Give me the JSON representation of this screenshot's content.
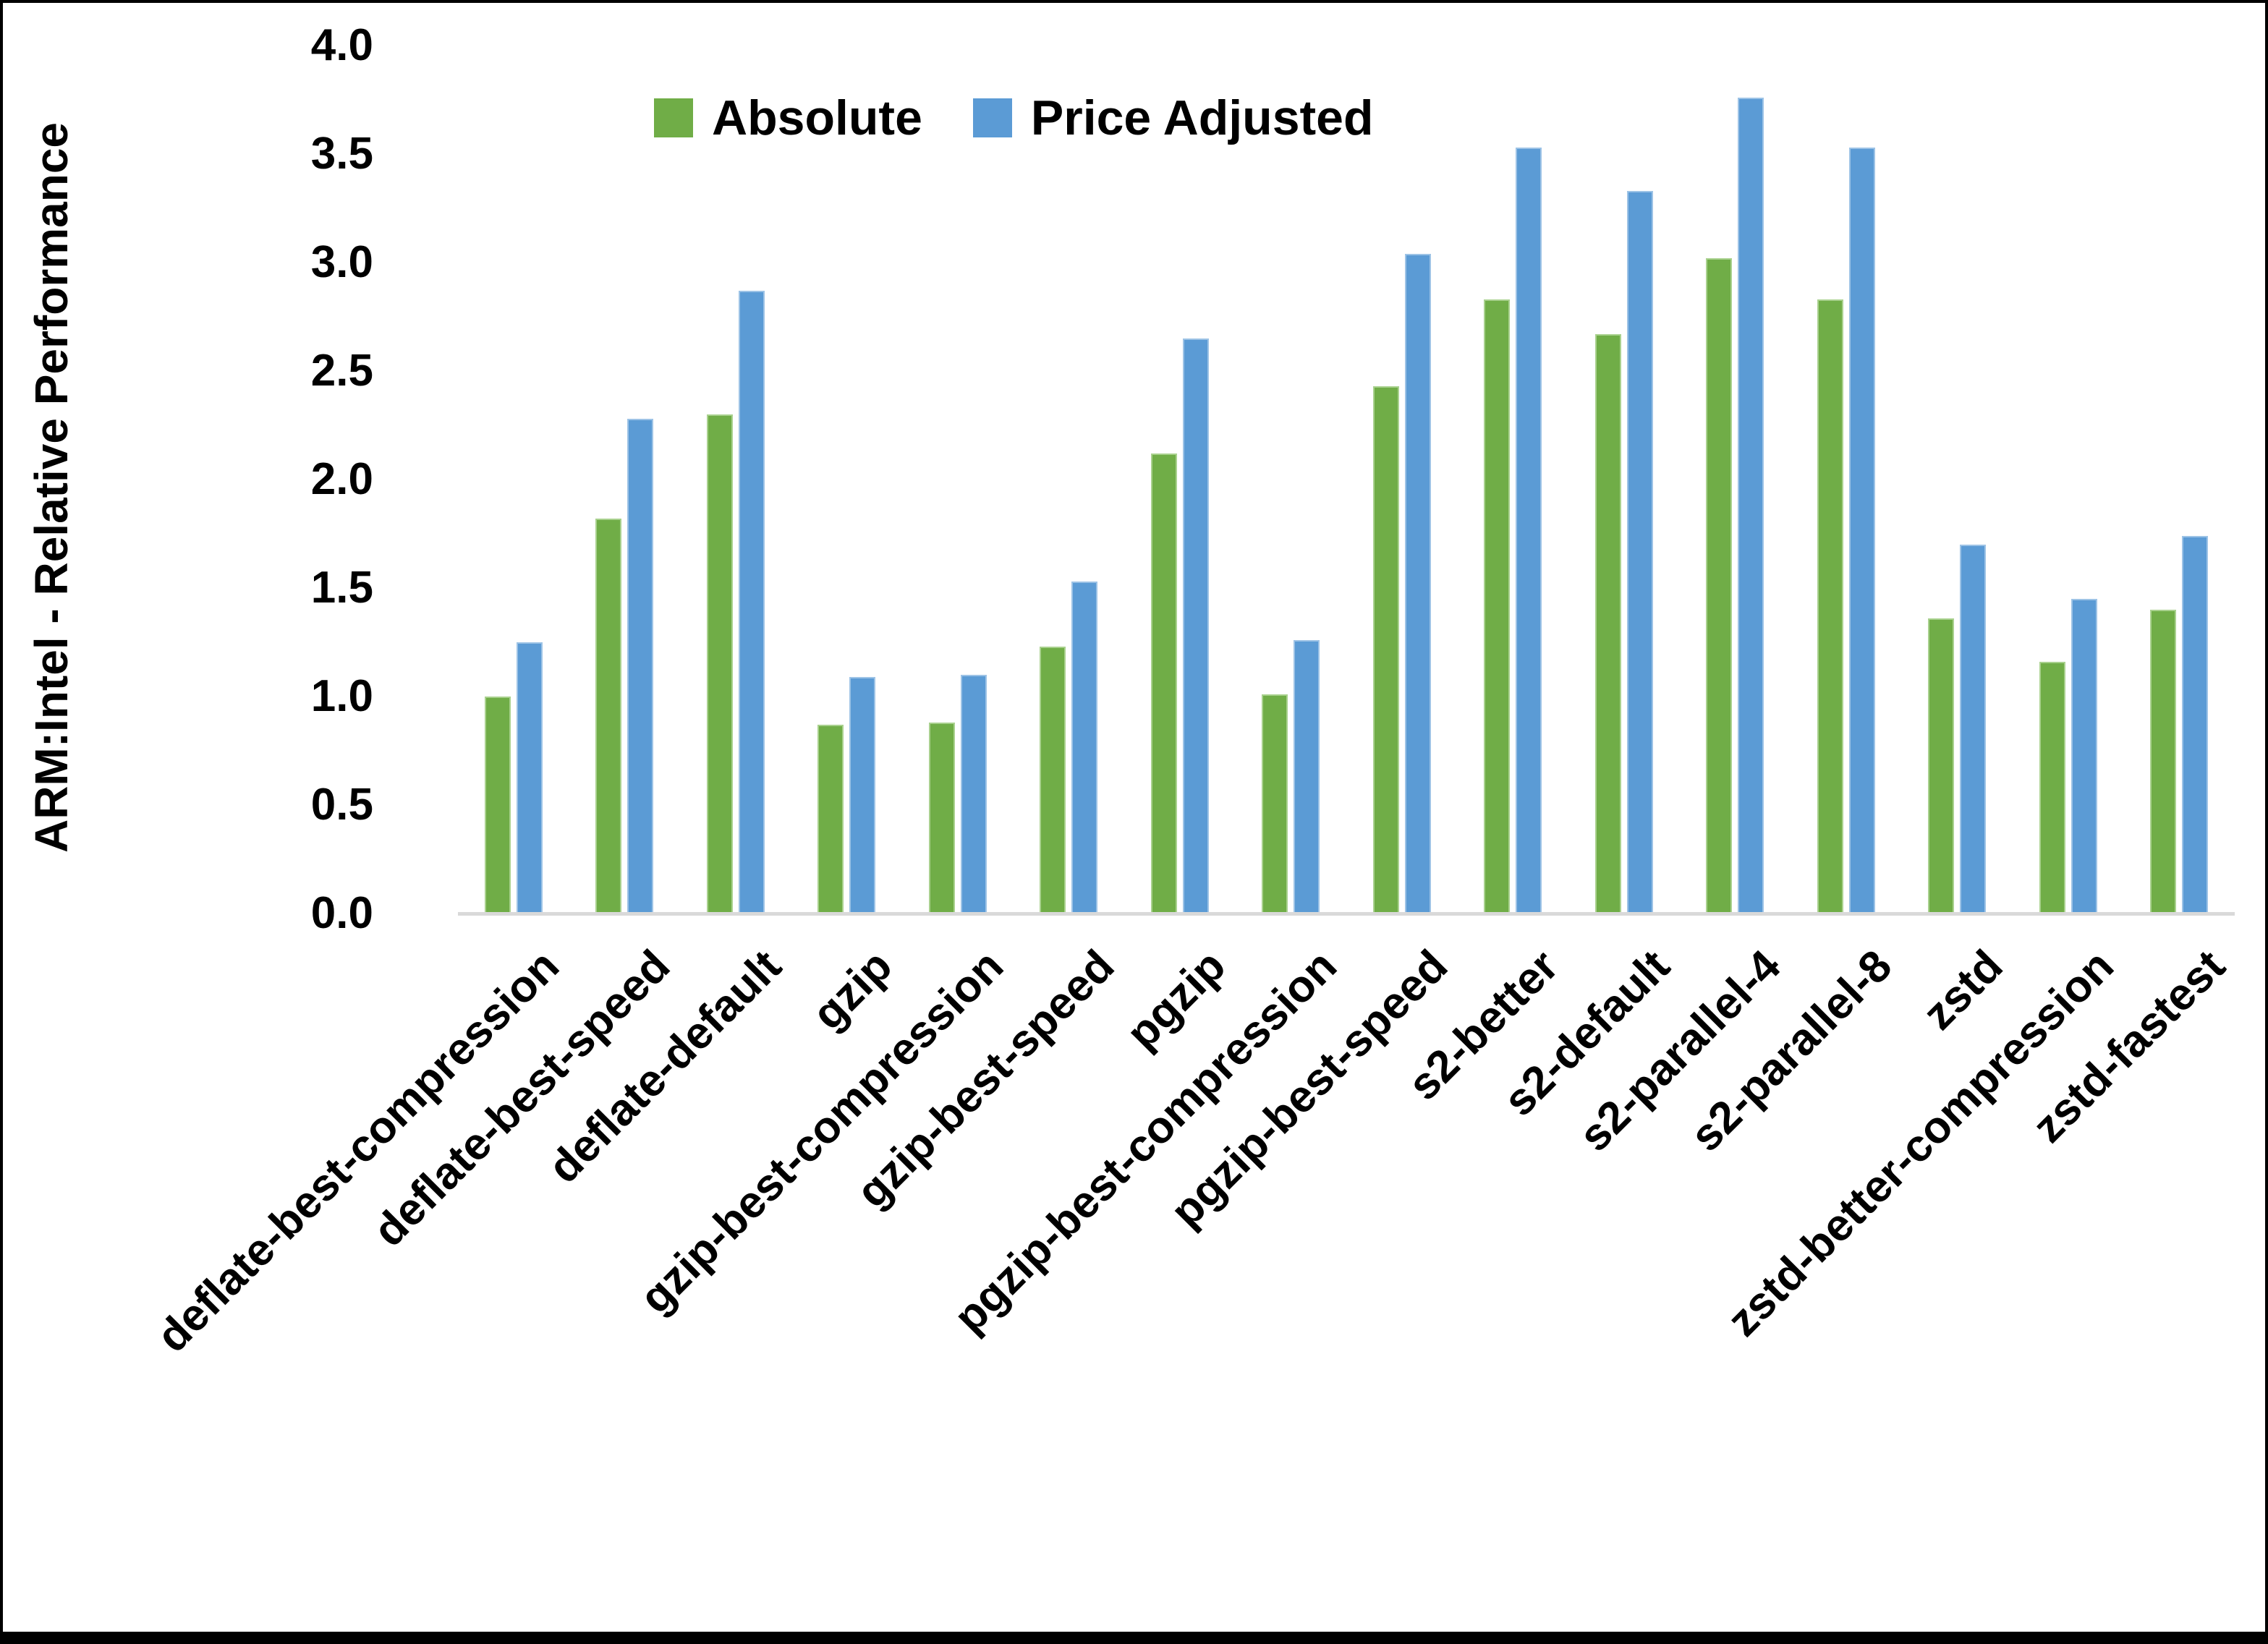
{
  "chart_data": {
    "type": "bar",
    "title": "",
    "xlabel": "",
    "ylabel": "ARM:Intel - Relative Performance",
    "ylim": [
      0.0,
      4.0
    ],
    "ytick_step": 0.5,
    "ytick_labels": [
      "0.0",
      "0.5",
      "1.0",
      "1.5",
      "2.0",
      "2.5",
      "3.0",
      "3.5",
      "4.0"
    ],
    "grid": false,
    "legend_position": "top-center",
    "categories": [
      "deflate-best-compression",
      "deflate-best-speed",
      "deflate-default",
      "gzip",
      "gzip-best-compression",
      "gzip-best-speed",
      "pgzip",
      "pgzip-best-compression",
      "pgzip-best-speed",
      "s2-better",
      "s2-default",
      "s2-parallel-4",
      "s2-parallel-8",
      "zstd",
      "zstd-better-compression",
      "zstd-fastest"
    ],
    "series": [
      {
        "name": "Absolute",
        "color": "#70AD47",
        "edge_color": "#A9D18E",
        "values": [
          1.0,
          1.82,
          2.3,
          0.87,
          0.88,
          1.23,
          2.12,
          1.01,
          2.43,
          2.83,
          2.67,
          3.02,
          2.83,
          1.36,
          1.16,
          1.4
        ]
      },
      {
        "name": "Price Adjusted",
        "color": "#5B9BD5",
        "edge_color": "#9DC3E6",
        "values": [
          1.25,
          2.28,
          2.87,
          1.09,
          1.1,
          1.53,
          2.65,
          1.26,
          3.04,
          3.53,
          3.33,
          3.76,
          3.53,
          1.7,
          1.45,
          1.74
        ]
      }
    ]
  },
  "axis": {
    "line_color": "#D9D9D9",
    "text_color": "#000000",
    "background": "#FFFFFF",
    "frame_color": "#000000"
  }
}
